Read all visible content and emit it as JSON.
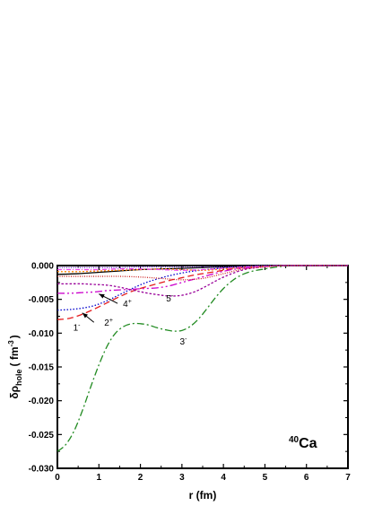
{
  "chart_data": {
    "type": "line",
    "title": "",
    "xlabel": "r (fm)",
    "ylabel_main": "δρ",
    "ylabel_sub": "hole",
    "ylabel_unit": "( fm",
    "ylabel_exp": "-3",
    "ylabel_close": ")",
    "xlim": [
      0,
      7
    ],
    "ylim": [
      -0.03,
      0.0
    ],
    "x_ticks": [
      0,
      1,
      2,
      3,
      4,
      5,
      6,
      7
    ],
    "x_tick_labels": [
      "0",
      "1",
      "2",
      "3",
      "4",
      "5",
      "6",
      "7"
    ],
    "y_ticks": [
      0.0,
      -0.005,
      -0.01,
      -0.015,
      -0.02,
      -0.025,
      -0.03
    ],
    "y_tick_labels": [
      "0.000",
      "-0.005",
      "-0.010",
      "-0.015",
      "-0.020",
      "-0.025",
      "-0.030"
    ],
    "grid": false,
    "annotation": {
      "text_sup": "40",
      "text_main": "Ca"
    },
    "series": [
      {
        "key": "3-",
        "color": "#228B22",
        "dash": "8,3,2,3",
        "points": [
          [
            0,
            -0.0275
          ],
          [
            0.2,
            -0.0265
          ],
          [
            0.4,
            -0.0245
          ],
          [
            0.6,
            -0.0215
          ],
          [
            0.8,
            -0.018
          ],
          [
            1.0,
            -0.0147
          ],
          [
            1.2,
            -0.0119
          ],
          [
            1.4,
            -0.01
          ],
          [
            1.6,
            -0.009
          ],
          [
            1.8,
            -0.0086
          ],
          [
            2.0,
            -0.0086
          ],
          [
            2.2,
            -0.0088
          ],
          [
            2.4,
            -0.0092
          ],
          [
            2.6,
            -0.0095
          ],
          [
            2.8,
            -0.0097
          ],
          [
            3.0,
            -0.0096
          ],
          [
            3.2,
            -0.009
          ],
          [
            3.4,
            -0.0079
          ],
          [
            3.6,
            -0.0064
          ],
          [
            3.8,
            -0.0048
          ],
          [
            4.0,
            -0.0034
          ],
          [
            4.2,
            -0.0023
          ],
          [
            4.4,
            -0.0015
          ],
          [
            4.6,
            -0.001
          ],
          [
            4.8,
            -0.0007
          ],
          [
            5.0,
            -0.0005
          ],
          [
            5.3,
            -0.0002
          ],
          [
            5.6,
            -5e-05
          ],
          [
            6.0,
            0.0
          ],
          [
            6.5,
            0.0
          ],
          [
            7.0,
            0.0
          ]
        ]
      },
      {
        "key": "2+",
        "color": "#e41a1c",
        "dash": "7,4",
        "points": [
          [
            0,
            -0.008
          ],
          [
            0.3,
            -0.0078
          ],
          [
            0.6,
            -0.0072
          ],
          [
            0.9,
            -0.0064
          ],
          [
            1.2,
            -0.0055
          ],
          [
            1.5,
            -0.0046
          ],
          [
            1.8,
            -0.0038
          ],
          [
            2.1,
            -0.0032
          ],
          [
            2.4,
            -0.0027
          ],
          [
            2.7,
            -0.0022
          ],
          [
            3.0,
            -0.0018
          ],
          [
            3.3,
            -0.0014
          ],
          [
            3.6,
            -0.0011
          ],
          [
            3.9,
            -0.0008
          ],
          [
            4.2,
            -0.0005
          ],
          [
            4.5,
            -0.0003
          ],
          [
            4.8,
            -0.0002
          ],
          [
            5.1,
            -0.0001
          ],
          [
            5.5,
            0.0
          ],
          [
            6.0,
            0.0
          ],
          [
            7.0,
            0.0
          ]
        ]
      },
      {
        "key": "1-",
        "color": "#0000cc",
        "dash": "1.5,2",
        "points": [
          [
            0,
            -0.0066
          ],
          [
            0.3,
            -0.0065
          ],
          [
            0.6,
            -0.0063
          ],
          [
            0.9,
            -0.0059
          ],
          [
            1.2,
            -0.0052
          ],
          [
            1.5,
            -0.0043
          ],
          [
            1.8,
            -0.0034
          ],
          [
            2.1,
            -0.0026
          ],
          [
            2.4,
            -0.002
          ],
          [
            2.7,
            -0.0015
          ],
          [
            3.0,
            -0.0011
          ],
          [
            3.3,
            -0.0008
          ],
          [
            3.6,
            -0.0006
          ],
          [
            3.9,
            -0.0004
          ],
          [
            4.2,
            -0.0003
          ],
          [
            4.5,
            -0.0002
          ],
          [
            4.8,
            -0.0001
          ],
          [
            5.2,
            0.0
          ],
          [
            6.0,
            0.0
          ],
          [
            7.0,
            0.0
          ]
        ]
      },
      {
        "key": "4+",
        "color": "#cc00cc",
        "dash": "8,3,2,3,2,3",
        "points": [
          [
            0,
            -0.0041
          ],
          [
            0.3,
            -0.0041
          ],
          [
            0.6,
            -0.004
          ],
          [
            0.9,
            -0.0039
          ],
          [
            1.2,
            -0.0037
          ],
          [
            1.5,
            -0.0036
          ],
          [
            1.8,
            -0.0035
          ],
          [
            2.1,
            -0.0034
          ],
          [
            2.4,
            -0.0033
          ],
          [
            2.7,
            -0.003
          ],
          [
            3.0,
            -0.0025
          ],
          [
            3.3,
            -0.002
          ],
          [
            3.6,
            -0.0015
          ],
          [
            3.9,
            -0.001
          ],
          [
            4.2,
            -0.0006
          ],
          [
            4.5,
            -0.0004
          ],
          [
            4.8,
            -0.0002
          ],
          [
            5.1,
            -0.0001
          ],
          [
            5.5,
            0.0
          ],
          [
            6.0,
            0.0
          ],
          [
            7.0,
            0.0
          ]
        ]
      },
      {
        "key": "5-",
        "color": "#990099",
        "dash": "2.5,2",
        "points": [
          [
            0,
            -0.0027
          ],
          [
            0.3,
            -0.0027
          ],
          [
            0.6,
            -0.0027
          ],
          [
            0.9,
            -0.0028
          ],
          [
            1.2,
            -0.0029
          ],
          [
            1.5,
            -0.0032
          ],
          [
            1.8,
            -0.0036
          ],
          [
            2.1,
            -0.004
          ],
          [
            2.4,
            -0.0043
          ],
          [
            2.7,
            -0.0045
          ],
          [
            3.0,
            -0.0044
          ],
          [
            3.3,
            -0.0039
          ],
          [
            3.6,
            -0.003
          ],
          [
            3.9,
            -0.002
          ],
          [
            4.2,
            -0.0012
          ],
          [
            4.5,
            -0.0006
          ],
          [
            4.8,
            -0.0003
          ],
          [
            5.1,
            -0.0001
          ],
          [
            5.5,
            0.0
          ],
          [
            6.0,
            0.0
          ],
          [
            7.0,
            0.0
          ]
        ]
      },
      {
        "key": "0+",
        "color": "#000000",
        "dash": "",
        "points": [
          [
            0,
            -0.0013
          ],
          [
            0.5,
            -0.0012
          ],
          [
            1.0,
            -0.001
          ],
          [
            1.5,
            -0.0008
          ],
          [
            2.0,
            -0.0006
          ],
          [
            2.5,
            -0.0005
          ],
          [
            3.0,
            -0.0004
          ],
          [
            3.5,
            -0.0003
          ],
          [
            4.0,
            -0.0002
          ],
          [
            4.5,
            -0.0001
          ],
          [
            5.0,
            0.0
          ],
          [
            6.0,
            0.0
          ],
          [
            7.0,
            0.0
          ]
        ]
      },
      {
        "key": "extra-orange",
        "color": "#ff8800",
        "dash": "2,2",
        "points": [
          [
            0,
            -0.0009
          ],
          [
            0.5,
            -0.0009
          ],
          [
            1.0,
            -0.0008
          ],
          [
            1.5,
            -0.0007
          ],
          [
            2.0,
            -0.0006
          ],
          [
            2.5,
            -0.0005
          ],
          [
            3.0,
            -0.0006
          ],
          [
            3.5,
            -0.0007
          ],
          [
            4.0,
            -0.0005
          ],
          [
            4.5,
            -0.0002
          ],
          [
            5.0,
            -0.0001
          ],
          [
            5.5,
            0.0
          ],
          [
            7.0,
            0.0
          ]
        ]
      },
      {
        "key": "extra-magenta",
        "color": "#ee44ee",
        "dash": "5,2,1,2",
        "points": [
          [
            0,
            -0.0006
          ],
          [
            0.5,
            -0.0006
          ],
          [
            1.0,
            -0.0006
          ],
          [
            1.5,
            -0.0005
          ],
          [
            2.0,
            -0.0005
          ],
          [
            2.5,
            -0.0006
          ],
          [
            3.0,
            -0.0007
          ],
          [
            3.5,
            -0.0006
          ],
          [
            4.0,
            -0.0004
          ],
          [
            4.5,
            -0.0002
          ],
          [
            5.0,
            -0.0001
          ],
          [
            5.5,
            0.0
          ],
          [
            7.0,
            0.0
          ]
        ]
      },
      {
        "key": "extra-purple",
        "color": "#6633cc",
        "dash": "1,1.5",
        "points": [
          [
            0,
            -0.0003
          ],
          [
            0.5,
            -0.0003
          ],
          [
            1.0,
            -0.0003
          ],
          [
            1.5,
            -0.0003
          ],
          [
            2.0,
            -0.0002
          ],
          [
            2.5,
            -0.0002
          ],
          [
            3.0,
            -0.0002
          ],
          [
            3.5,
            -0.0002
          ],
          [
            4.0,
            -0.0002
          ],
          [
            4.5,
            -0.0001
          ],
          [
            5.0,
            0.0
          ],
          [
            7.0,
            0.0
          ]
        ]
      },
      {
        "key": "extra-red",
        "color": "#cc2222",
        "dash": "1,1.5",
        "points": [
          [
            0,
            -0.0016
          ],
          [
            0.5,
            -0.0016
          ],
          [
            1.0,
            -0.0016
          ],
          [
            1.5,
            -0.0016
          ],
          [
            2.0,
            -0.0017
          ],
          [
            2.5,
            -0.0019
          ],
          [
            3.0,
            -0.0021
          ],
          [
            3.5,
            -0.0019
          ],
          [
            4.0,
            -0.0012
          ],
          [
            4.5,
            -0.0005
          ],
          [
            5.0,
            -0.0002
          ],
          [
            5.5,
            0.0
          ],
          [
            7.0,
            0.0
          ]
        ]
      }
    ],
    "curve_labels": [
      {
        "main": "3",
        "sup": "-",
        "x": 2.95,
        "y": -0.0117
      },
      {
        "main": "2",
        "sup": "+",
        "x": 1.13,
        "y": -0.0089
      },
      {
        "main": "1",
        "sup": "-",
        "x": 0.38,
        "y": -0.0096
      },
      {
        "main": "4",
        "sup": "+",
        "x": 1.58,
        "y": -0.0061
      },
      {
        "main": "5",
        "sup": "-",
        "x": 2.62,
        "y": -0.0053
      }
    ],
    "arrows": [
      {
        "from": [
          1.45,
          -0.0056
        ],
        "to": [
          1.0,
          -0.0042
        ]
      },
      {
        "from": [
          0.88,
          -0.0084
        ],
        "to": [
          0.6,
          -0.007
        ]
      }
    ]
  }
}
